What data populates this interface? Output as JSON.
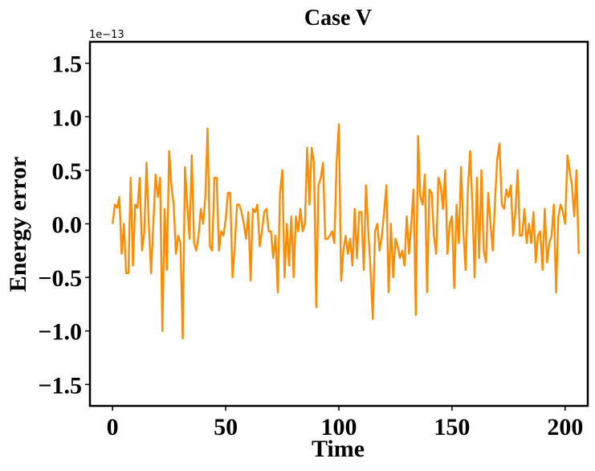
{
  "chart_data": {
    "type": "line",
    "title": "Case V",
    "xlabel": "Time",
    "ylabel": "Energy error",
    "y_offset_text": "1e−13",
    "xlim": [
      -10,
      210
    ],
    "ylim": [
      -1.7,
      1.7
    ],
    "x_ticks": [
      0,
      50,
      100,
      150,
      200
    ],
    "x_tick_labels": [
      "0",
      "50",
      "100",
      "150",
      "200"
    ],
    "y_ticks": [
      -1.5,
      -1.0,
      -0.5,
      0.0,
      0.5,
      1.0,
      1.5
    ],
    "y_tick_labels": [
      "−1.5",
      "−1.0",
      "−0.5",
      "0.0",
      "0.5",
      "1.0",
      "1.5"
    ],
    "grid": false,
    "series": [
      {
        "color": "#ff8c00",
        "x_start": 0,
        "x_step": 1,
        "values": [
          0.0,
          0.18,
          0.15,
          0.25,
          -0.28,
          0.0,
          -0.46,
          -0.46,
          0.43,
          -0.39,
          0.18,
          0.15,
          0.43,
          -0.25,
          -0.08,
          0.57,
          0.0,
          -0.46,
          0.0,
          0.46,
          0.25,
          0.43,
          -1.0,
          0.14,
          -0.43,
          0.68,
          0.36,
          0.18,
          -0.28,
          -0.11,
          -0.18,
          -1.07,
          0.53,
          0.18,
          -0.14,
          0.64,
          -0.18,
          -0.25,
          -0.11,
          0.14,
          0.0,
          0.25,
          0.89,
          -0.21,
          -0.25,
          0.43,
          0.43,
          -0.25,
          -0.07,
          -0.11,
          0.04,
          0.29,
          0.29,
          -0.5,
          -0.21,
          0.18,
          0.18,
          0.11,
          0.0,
          -0.14,
          0.11,
          -0.53,
          0.14,
          0.11,
          0.18,
          -0.21,
          -0.07,
          0.11,
          0.14,
          -0.07,
          -0.07,
          -0.32,
          -0.11,
          -0.64,
          0.29,
          0.5,
          -0.5,
          0.0,
          -0.39,
          0.07,
          -0.5,
          0.07,
          -0.07,
          0.14,
          -0.07,
          0.0,
          0.71,
          0.18,
          0.71,
          0.57,
          -0.78,
          0.36,
          0.43,
          0.57,
          -0.14,
          -0.14,
          -0.11,
          -0.07,
          -0.18,
          0.57,
          0.93,
          -0.53,
          -0.25,
          -0.11,
          -0.28,
          -0.14,
          -0.39,
          0.14,
          -0.32,
          0.11,
          0.11,
          -0.43,
          0.36,
          -0.07,
          -0.43,
          -0.89,
          -0.07,
          0.0,
          -0.25,
          -0.11,
          0.11,
          0.36,
          -0.64,
          0.0,
          -0.5,
          -0.14,
          -0.21,
          -0.32,
          -0.25,
          -0.39,
          0.07,
          -0.28,
          0.0,
          0.32,
          -0.85,
          0.82,
          0.25,
          0.18,
          0.46,
          -0.64,
          0.32,
          0.29,
          -0.11,
          -0.28,
          0.43,
          0.36,
          0.14,
          0.5,
          -0.28,
          0.0,
          0.07,
          -0.6,
          0.18,
          -0.18,
          0.53,
          -0.07,
          -0.43,
          0.32,
          0.68,
          0.18,
          -0.5,
          0.43,
          -0.32,
          0.5,
          -0.25,
          -0.36,
          0.29,
          0.0,
          -0.25,
          0.21,
          0.61,
          0.75,
          0.18,
          0.14,
          0.32,
          0.25,
          0.36,
          -0.11,
          0.11,
          0.5,
          -0.11,
          -0.11,
          0.14,
          -0.18,
          0.0,
          -0.18,
          0.11,
          -0.36,
          -0.11,
          -0.07,
          -0.43,
          0.14,
          -0.36,
          -0.18,
          -0.11,
          0.18,
          -0.64,
          0.07,
          0.18,
          0.11,
          0.0,
          0.64,
          0.5,
          0.36,
          0.07,
          0.5,
          -0.28
        ]
      }
    ]
  }
}
